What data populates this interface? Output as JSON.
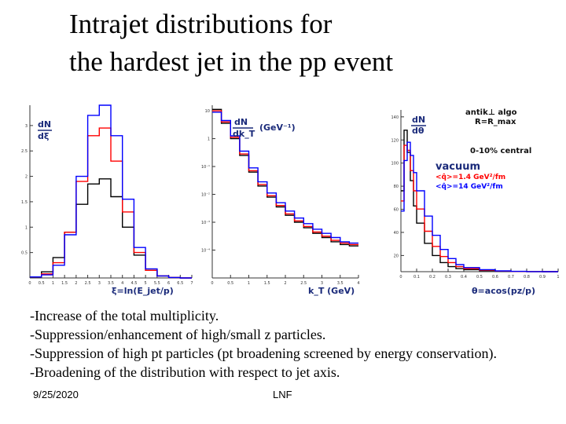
{
  "slide": {
    "title_line1": "Intrajet distributions for",
    "title_line2": "the hardest jet in the pp event",
    "bullets": [
      "-Increase of the total multiplicity.",
      "-Suppression/enhancement of high/small z particles.",
      "-Suppression of high pt particles (pt broadening screened by energy conservation).",
      "-Broadening of the distribution with respect to jet axis."
    ],
    "footer_date": "9/25/2020",
    "footer_org": "LNF"
  },
  "chart_data": [
    {
      "type": "line",
      "title": "",
      "ylabel_top": "dN",
      "ylabel_bottom": "dξ",
      "xlabel": "ξ=ln(E_jet/p)",
      "xlim": [
        0,
        7
      ],
      "ylim": [
        0,
        3.4
      ],
      "y_ticks": [
        "0.5",
        "1",
        "1.5",
        "2",
        "2.5",
        "3"
      ],
      "x_ticks": [
        "0",
        "0.5",
        "1",
        "1.5",
        "2",
        "2.5",
        "3",
        "3.5",
        "4",
        "4.5",
        "5",
        "5.5",
        "6",
        "6.5",
        "7"
      ],
      "x": [
        0,
        0.5,
        1,
        1.5,
        2,
        2.5,
        3,
        3.5,
        4,
        4.5,
        5,
        5.5,
        6,
        6.5,
        7
      ],
      "series": [
        {
          "name": "vacuum",
          "color": "#000000",
          "values": [
            0.02,
            0.12,
            0.4,
            0.9,
            1.45,
            1.85,
            1.95,
            1.6,
            1.0,
            0.45,
            0.15,
            0.04,
            0.01,
            0,
            0
          ]
        },
        {
          "name": "q̂=1.4 GeV²/fm",
          "color": "#ff0000",
          "values": [
            0.02,
            0.08,
            0.3,
            0.9,
            1.9,
            2.8,
            2.95,
            2.3,
            1.3,
            0.5,
            0.15,
            0.04,
            0.01,
            0,
            0
          ]
        },
        {
          "name": "q̂=14 GeV²/fm",
          "color": "#0000ff",
          "values": [
            0.02,
            0.06,
            0.25,
            0.85,
            2.0,
            3.2,
            3.4,
            2.8,
            1.55,
            0.6,
            0.18,
            0.04,
            0.01,
            0,
            0
          ]
        }
      ]
    },
    {
      "type": "line",
      "title": "",
      "ylabel_top": "dN",
      "ylabel_bottom": "dk_T",
      "ylabel_units": "(GeV⁻¹)",
      "xlabel": "k_T (GeV)",
      "yscale": "log",
      "xlim": [
        0,
        4
      ],
      "y_log_range": [
        -5,
        1.2
      ],
      "y_ticks": [
        "10",
        "1",
        "10⁻¹",
        "10⁻²",
        "10⁻³",
        "10⁻⁴"
      ],
      "x_ticks": [
        "0",
        "0.5",
        "1",
        "1.5",
        "2",
        "2.5",
        "3",
        "3.5",
        "4"
      ],
      "x": [
        0,
        0.25,
        0.5,
        0.75,
        1,
        1.25,
        1.5,
        1.75,
        2,
        2.25,
        2.5,
        2.75,
        3,
        3.25,
        3.5,
        3.75
      ],
      "series": [
        {
          "name": "vacuum",
          "color": "#000000",
          "log10_values": [
            1.05,
            0.55,
            0.0,
            -0.6,
            -1.2,
            -1.7,
            -2.1,
            -2.45,
            -2.75,
            -3.0,
            -3.2,
            -3.4,
            -3.55,
            -3.7,
            -3.8,
            -3.85
          ]
        },
        {
          "name": "q̂=1.4 GeV²/fm",
          "color": "#ff0000",
          "log10_values": [
            1.0,
            0.6,
            0.05,
            -0.55,
            -1.15,
            -1.65,
            -2.05,
            -2.4,
            -2.7,
            -2.95,
            -3.15,
            -3.35,
            -3.5,
            -3.65,
            -3.75,
            -3.8
          ]
        },
        {
          "name": "q̂=14 GeV²/fm",
          "color": "#0000ff",
          "log10_values": [
            0.95,
            0.65,
            0.1,
            -0.45,
            -1.05,
            -1.55,
            -1.95,
            -2.3,
            -2.6,
            -2.85,
            -3.05,
            -3.25,
            -3.4,
            -3.55,
            -3.7,
            -3.75
          ]
        }
      ]
    },
    {
      "type": "line",
      "title": "",
      "ylabel_top": "dN",
      "ylabel_bottom": "dθ",
      "xlabel": "θ=acos(pz/p)",
      "xlim": [
        0,
        1
      ],
      "ylim": [
        0,
        160
      ],
      "y_ticks": [
        "140",
        "120",
        "100",
        "80",
        "60",
        "40",
        "20"
      ],
      "x_ticks": [
        "0",
        "0.1",
        "0.2",
        "0.3",
        "0.4",
        "0.5",
        "0.6",
        "0.7",
        "0.8",
        "0.9",
        "1"
      ],
      "legend_header": [
        "antik⊥ algo",
        "R=R_max",
        "0-10% central"
      ],
      "x": [
        0,
        0.02,
        0.04,
        0.06,
        0.08,
        0.1,
        0.15,
        0.2,
        0.25,
        0.3,
        0.35,
        0.4,
        0.5,
        0.6,
        0.7,
        0.8,
        0.9,
        1.0
      ],
      "series": [
        {
          "name": "vacuum",
          "color": "#000000",
          "values": [
            80,
            140,
            118,
            90,
            65,
            48,
            28,
            16,
            9,
            5,
            3,
            2,
            1,
            0.5,
            0.2,
            0.1,
            0,
            0
          ]
        },
        {
          "name": "<q̂>=1.4 GeV²/fm",
          "color": "#ff0000",
          "values": [
            70,
            125,
            120,
            100,
            80,
            62,
            40,
            25,
            15,
            9,
            5,
            3,
            1.5,
            0.6,
            0.2,
            0.1,
            0,
            0
          ]
        },
        {
          "name": "<q̂>=14 GeV²/fm",
          "color": "#0000ff",
          "values": [
            60,
            110,
            128,
            115,
            98,
            80,
            55,
            36,
            22,
            13,
            7,
            4,
            2,
            0.8,
            0.3,
            0.1,
            0,
            0
          ]
        }
      ],
      "legend_entries": [
        "vacuum",
        "<q̂>=1.4 GeV²/fm",
        "<q̂>=14 GeV²/fm"
      ]
    }
  ]
}
